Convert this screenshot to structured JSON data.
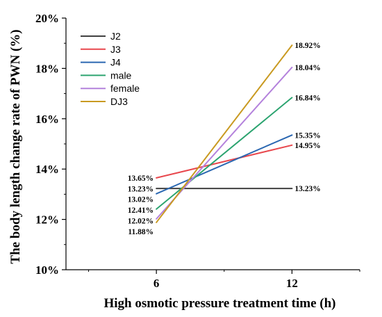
{
  "chart_data": {
    "type": "line",
    "xlabel": "High osmotic pressure treatment time (h)",
    "ylabel": "The body length change rate of PWN (%)",
    "x": [
      6,
      12
    ],
    "x_tick_labels": [
      "6",
      "12"
    ],
    "xlim": [
      2,
      15
    ],
    "ylim": [
      10,
      20
    ],
    "y_ticks": [
      10,
      12,
      14,
      16,
      18,
      20
    ],
    "y_tick_labels": [
      "10%",
      "12%",
      "14%",
      "16%",
      "18%",
      "20%"
    ],
    "legend_position": "top-left",
    "grid": false,
    "series": [
      {
        "name": "J2",
        "color": "#404040",
        "values": [
          13.23,
          13.23
        ],
        "labels": [
          "13.23%",
          "13.23%"
        ]
      },
      {
        "name": "J3",
        "color": "#e8474d",
        "values": [
          13.65,
          14.95
        ],
        "labels": [
          "13.65%",
          "14.95%"
        ]
      },
      {
        "name": "J4",
        "color": "#2a67b1",
        "values": [
          13.02,
          15.35
        ],
        "labels": [
          "13.02%",
          "15.35%"
        ]
      },
      {
        "name": "male",
        "color": "#2ca470",
        "values": [
          12.41,
          16.84
        ],
        "labels": [
          "12.41%",
          "16.84%"
        ]
      },
      {
        "name": "female",
        "color": "#b482dc",
        "values": [
          12.02,
          18.04
        ],
        "labels": [
          "12.02%",
          "18.04%"
        ]
      },
      {
        "name": "DJ3",
        "color": "#c99a21",
        "values": [
          11.88,
          18.92
        ],
        "labels": [
          "11.88%",
          "18.92%"
        ]
      }
    ],
    "left_label_order": [
      "J3",
      "J2",
      "J4",
      "male",
      "female",
      "DJ3"
    ]
  }
}
